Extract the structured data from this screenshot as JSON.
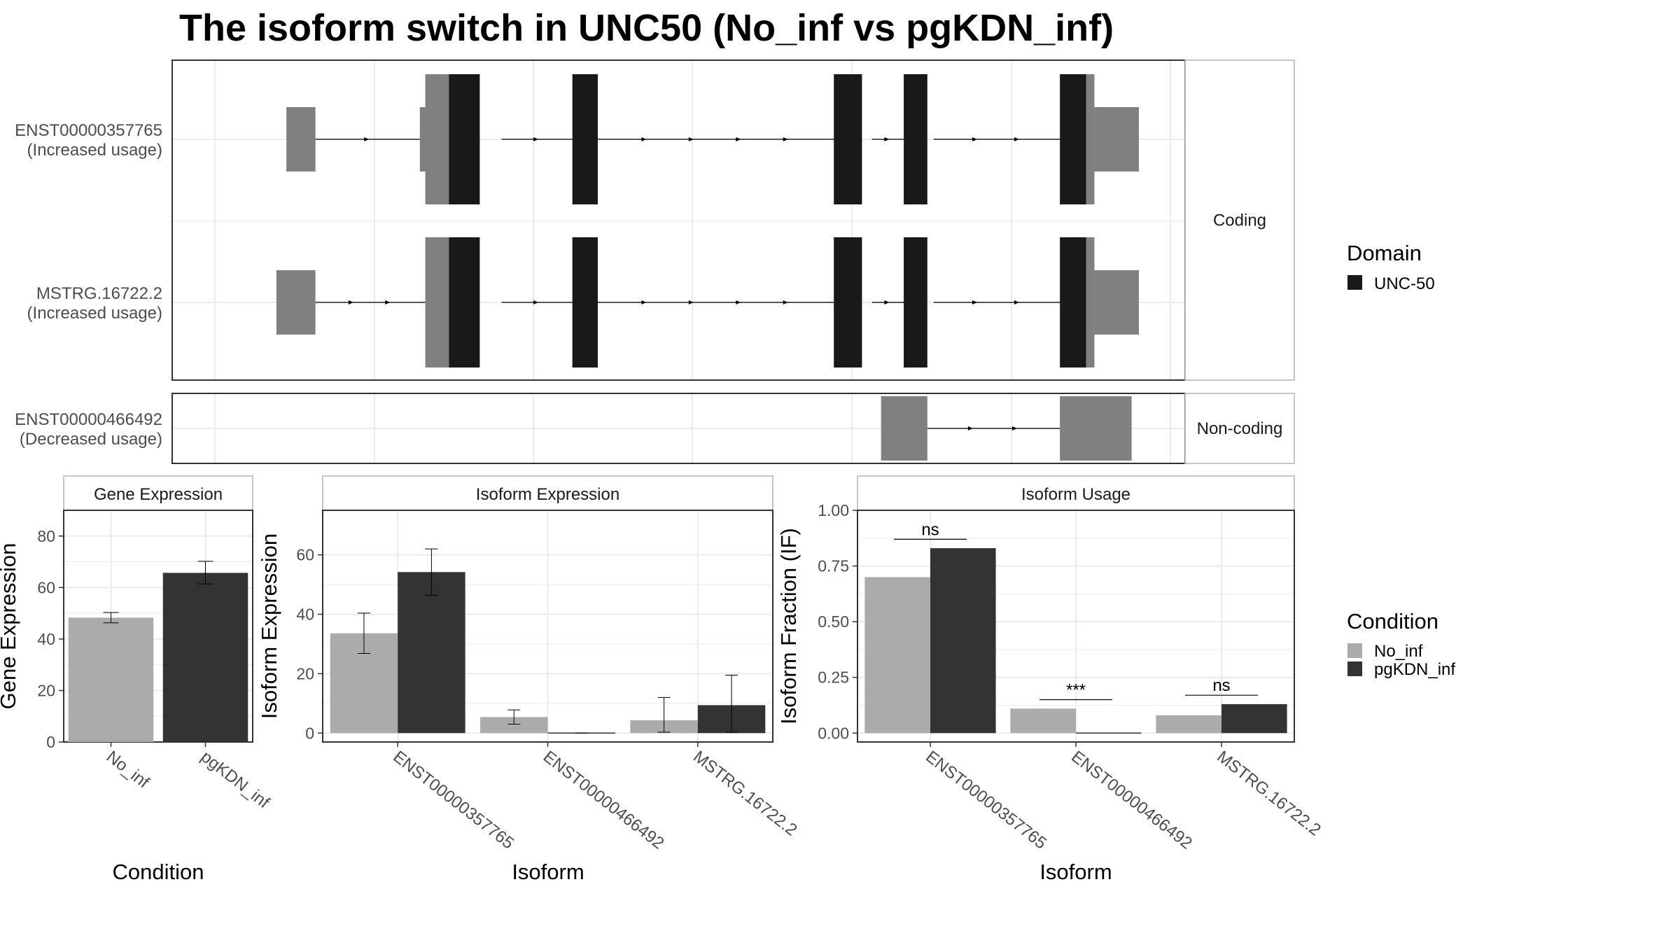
{
  "title": "The isoform switch in UNC50 (No_inf vs pgKDN_inf)",
  "colors": {
    "no_inf": "#ABABAB",
    "pgkdn_inf": "#333333",
    "domain": "#191919",
    "utr": "#808080",
    "grid": "#EBEBEB",
    "panel_border": "#333333",
    "strip_border": "#B3B3B3",
    "text": "#1A1A1A",
    "axis_text": "#4D4D4D"
  },
  "chart_data": [
    {
      "type": "transcript-structure",
      "coord_range": [
        0,
        100
      ],
      "facets": [
        {
          "label": "Coding",
          "isoforms": [
            {
              "id": "ENST00000357765",
              "sub": "(Increased usage)",
              "introns": [
                [
                  9.3,
                  20.8
                ],
                [
                  29.8,
                  37.6
                ],
                [
                  40.4,
                  66.4
                ],
                [
                  70.6,
                  74.1
                ],
                [
                  77.4,
                  91.3
                ]
              ],
              "exons": [
                {
                  "start": 6.1,
                  "end": 9.3,
                  "kind": "utr"
                },
                {
                  "start": 20.8,
                  "end": 21.4,
                  "kind": "utr"
                },
                {
                  "start": 21.4,
                  "end": 24.0,
                  "kind": "cds"
                },
                {
                  "start": 24.0,
                  "end": 27.4,
                  "kind": "domain"
                },
                {
                  "start": 37.6,
                  "end": 40.4,
                  "kind": "domain"
                },
                {
                  "start": 66.4,
                  "end": 69.5,
                  "kind": "domain"
                },
                {
                  "start": 74.1,
                  "end": 76.7,
                  "kind": "domain"
                },
                {
                  "start": 91.3,
                  "end": 94.2,
                  "kind": "domain"
                },
                {
                  "start": 94.2,
                  "end": 95.1,
                  "kind": "cds"
                },
                {
                  "start": 95.1,
                  "end": 100.0,
                  "kind": "utr"
                }
              ]
            },
            {
              "id": "MSTRG.16722.2",
              "sub": "(Increased usage)",
              "introns": [
                [
                  9.3,
                  21.4
                ],
                [
                  29.8,
                  37.6
                ],
                [
                  40.4,
                  66.4
                ],
                [
                  70.6,
                  74.1
                ],
                [
                  77.4,
                  91.3
                ]
              ],
              "exons": [
                {
                  "start": 5.0,
                  "end": 9.3,
                  "kind": "utr"
                },
                {
                  "start": 21.4,
                  "end": 24.0,
                  "kind": "cds"
                },
                {
                  "start": 24.0,
                  "end": 27.4,
                  "kind": "domain"
                },
                {
                  "start": 37.6,
                  "end": 40.4,
                  "kind": "domain"
                },
                {
                  "start": 66.4,
                  "end": 69.5,
                  "kind": "domain"
                },
                {
                  "start": 74.1,
                  "end": 76.7,
                  "kind": "domain"
                },
                {
                  "start": 91.3,
                  "end": 94.2,
                  "kind": "domain"
                },
                {
                  "start": 94.2,
                  "end": 95.1,
                  "kind": "cds"
                },
                {
                  "start": 95.1,
                  "end": 100.0,
                  "kind": "utr"
                }
              ]
            }
          ]
        },
        {
          "label": "Non-coding",
          "isoforms": [
            {
              "id": "ENST00000466492",
              "sub": "(Decreased usage)",
              "introns": [
                [
                  76.7,
                  91.3
                ]
              ],
              "exons": [
                {
                  "start": 71.6,
                  "end": 76.7,
                  "kind": "utr"
                },
                {
                  "start": 91.3,
                  "end": 99.2,
                  "kind": "utr"
                }
              ]
            }
          ]
        }
      ],
      "legend": {
        "title": "Domain",
        "items": [
          "UNC-50"
        ]
      }
    },
    {
      "type": "bar",
      "strip": "Gene Expression",
      "xlabel": "Condition",
      "ylabel": "Gene Expression",
      "ylim": [
        0,
        90
      ],
      "yticks": [
        0,
        20,
        40,
        60,
        80
      ],
      "categories": [
        "No_inf",
        "pgKDN_inf"
      ],
      "values": [
        48.3,
        65.7
      ],
      "errors": [
        [
          46.3,
          50.3
        ],
        [
          61.4,
          70.2
        ]
      ]
    },
    {
      "type": "bar",
      "strip": "Isoform Expression",
      "xlabel": "Isoform",
      "ylabel": "Isoform Expression",
      "ylim": [
        -3,
        75
      ],
      "yticks": [
        0,
        20,
        40,
        60
      ],
      "categories": [
        "ENST00000357765",
        "ENST00000466492",
        "MSTRG.16722.2"
      ],
      "series": [
        {
          "name": "No_inf",
          "values": [
            33.6,
            5.4,
            4.3
          ],
          "errors": [
            [
              26.8,
              40.4
            ],
            [
              3.0,
              7.8
            ],
            [
              0.3,
              12.0
            ]
          ]
        },
        {
          "name": "pgKDN_inf",
          "values": [
            54.2,
            0.0,
            9.4
          ],
          "errors": [
            [
              46.4,
              62.0
            ],
            [
              0.0,
              0.0
            ],
            [
              0.3,
              19.5
            ]
          ]
        }
      ]
    },
    {
      "type": "bar",
      "strip": "Isoform Usage",
      "xlabel": "Isoform",
      "ylabel": "Isoform Fraction (IF)",
      "ylim": [
        -0.04,
        1.0
      ],
      "yticks": [
        "0.00",
        "0.25",
        "0.50",
        "0.75",
        "1.00"
      ],
      "categories": [
        "ENST00000357765",
        "ENST00000466492",
        "MSTRG.16722.2"
      ],
      "series": [
        {
          "name": "No_inf",
          "values": [
            0.7,
            0.11,
            0.08
          ]
        },
        {
          "name": "pgKDN_inf",
          "values": [
            0.83,
            0.0,
            0.13
          ]
        }
      ],
      "significance": [
        {
          "label": "ns",
          "y": 0.87
        },
        {
          "label": "***",
          "y": 0.15
        },
        {
          "label": "ns",
          "y": 0.17
        }
      ]
    }
  ],
  "legend_condition": {
    "title": "Condition",
    "items": [
      "No_inf",
      "pgKDN_inf"
    ]
  }
}
